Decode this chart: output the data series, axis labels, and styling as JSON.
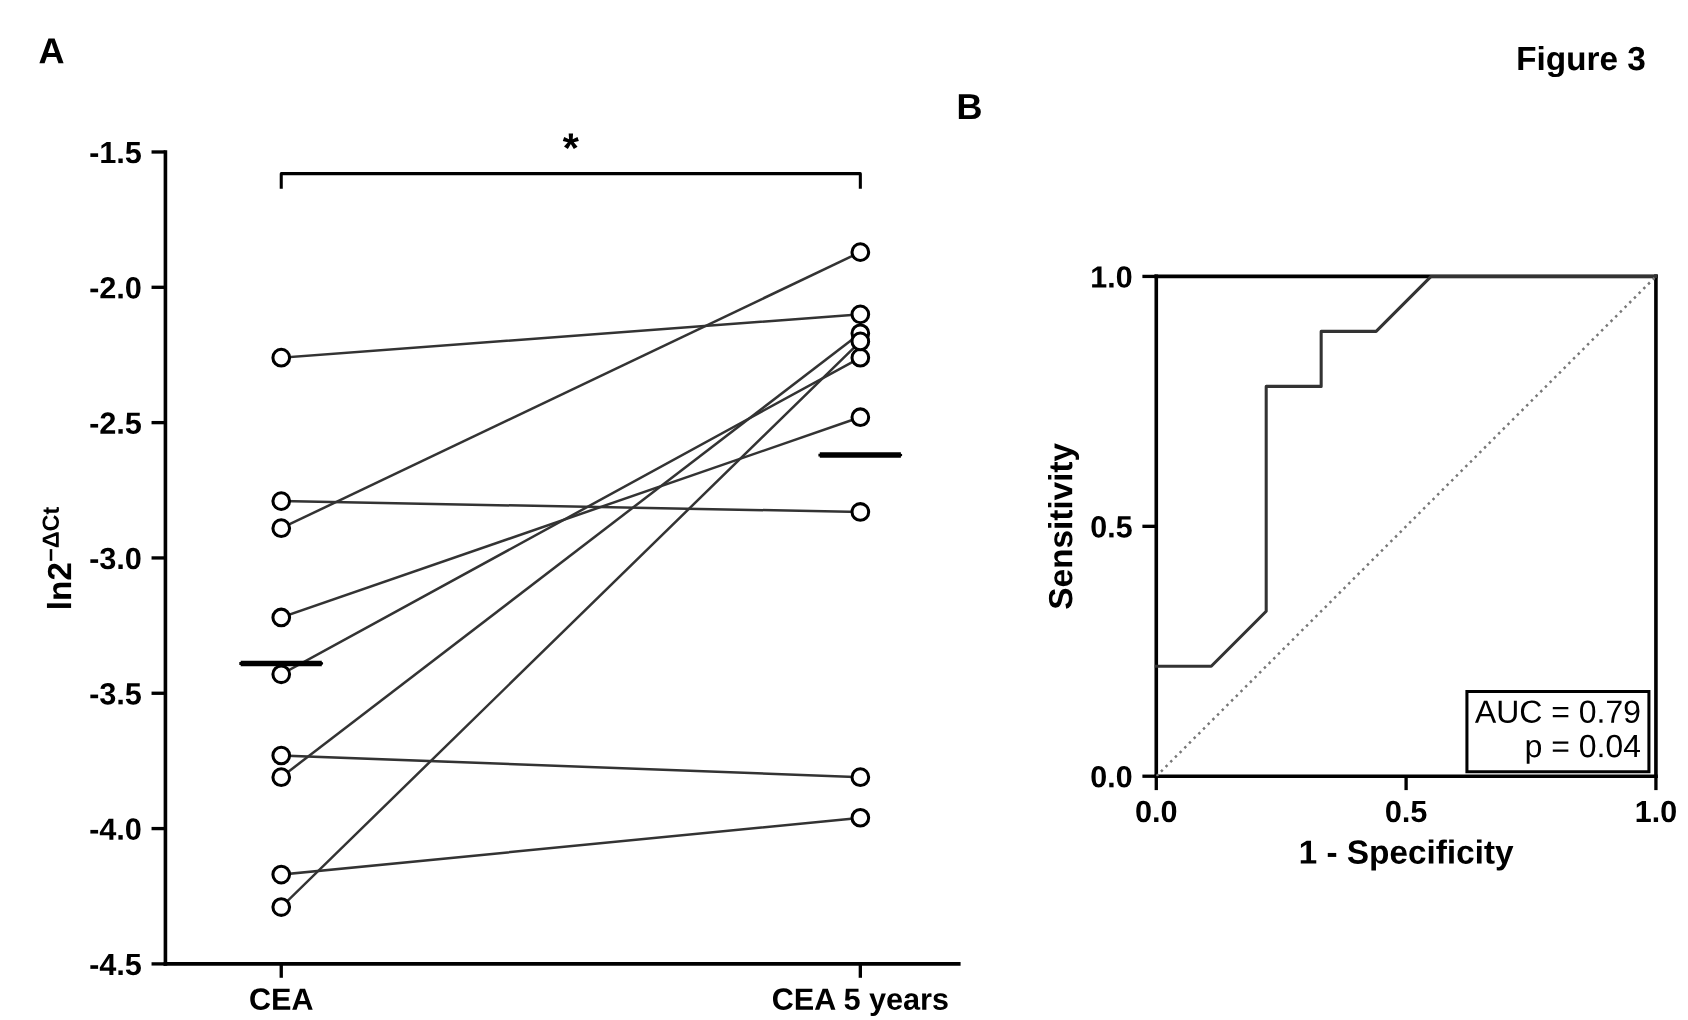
{
  "chart_data": [
    {
      "type": "line",
      "title": "A",
      "ylabel": "ln2$^{−ΔCt}$",
      "categories": [
        "CEA",
        "CEA 5 years"
      ],
      "ylim": [
        -4.5,
        -1.5
      ],
      "yticks": [
        {
          "value": -4.5,
          "label": "-4.5"
        },
        {
          "value": -4.0,
          "label": "-4.0"
        },
        {
          "value": -3.5,
          "label": "-3.5"
        },
        {
          "value": -3.0,
          "label": "-3.0"
        },
        {
          "value": -2.5,
          "label": "-2.5"
        },
        {
          "value": -2.0,
          "label": "-2.0"
        },
        {
          "value": -1.5,
          "label": "-1.5"
        }
      ],
      "marker": "circle",
      "line_style": "solid",
      "series": [
        {
          "color": "#333333",
          "values": [
            -2.26,
            -2.1
          ]
        },
        {
          "color": "#333333",
          "values": [
            -2.79,
            -2.83
          ]
        },
        {
          "color": "#333333",
          "values": [
            -2.89,
            -1.87
          ]
        },
        {
          "color": "#333333",
          "values": [
            -3.22,
            -2.48
          ]
        },
        {
          "color": "#333333",
          "values": [
            -3.43,
            -2.26
          ]
        },
        {
          "color": "#333333",
          "values": [
            -3.73,
            -3.81
          ]
        },
        {
          "color": "#333333",
          "values": [
            -3.81,
            -2.17
          ]
        },
        {
          "color": "#333333",
          "values": [
            -4.17,
            -3.96
          ]
        },
        {
          "color": "#333333",
          "values": [
            -4.29,
            -2.2
          ]
        },
        {
          "type": "box",
          "color": "#000000",
          "boxes": [
            {
              "low": -3.39,
              "q1": -3.39,
              "median": -3.39,
              "q3": -3.39,
              "high": -3.39
            },
            {
              "low": -2.62,
              "q1": -2.62,
              "median": -2.62,
              "q3": -2.62,
              "high": -2.62
            }
          ]
        }
      ],
      "annotations": [
        "*",
        "Figure 3"
      ]
    },
    {
      "type": "line",
      "title": "B",
      "xlabel": "1 - Specificity",
      "ylabel": "Sensitivity",
      "xlim": [
        0,
        1
      ],
      "ylim": [
        0,
        1
      ],
      "xticks": [
        {
          "value": 0,
          "label": "0.0"
        },
        {
          "value": 0.5,
          "label": "0.5"
        },
        {
          "value": 1,
          "label": "1.0"
        }
      ],
      "yticks": [
        {
          "value": 0,
          "label": "0.0"
        },
        {
          "value": 0.5,
          "label": "0.5"
        },
        {
          "value": 1,
          "label": "1.0"
        }
      ],
      "series": [
        {
          "type": "step",
          "color": "#333333",
          "line_style": "solid",
          "x": [
            0,
            0.11,
            0.22,
            0.22,
            0.33,
            0.33,
            0.44,
            0.55,
            1.0
          ],
          "values": [
            0.22,
            0.22,
            0.33,
            0.78,
            0.78,
            0.89,
            0.89,
            1.0,
            1.0
          ]
        },
        {
          "color": "#777777",
          "line_style": "dotted",
          "x": [
            0,
            1
          ],
          "values": [
            0,
            1
          ]
        }
      ],
      "annotations": [
        "AUC = 0.79",
        "p = 0.04"
      ]
    }
  ]
}
